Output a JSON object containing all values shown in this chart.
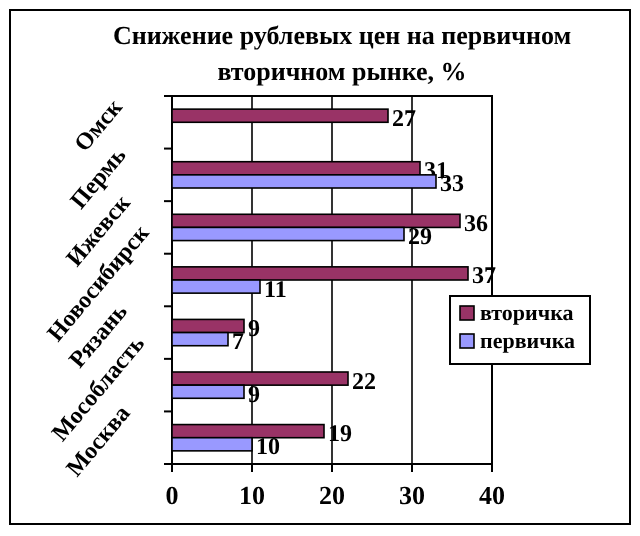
{
  "chart_data": {
    "type": "bar",
    "orientation": "horizontal",
    "title": "Снижение рублевых цен на первичном вторичном рынке, %",
    "categories": [
      "Омск",
      "Пермь",
      "Ижевск",
      "Новосибирск",
      "Рязань",
      "Мособласть",
      "Москва"
    ],
    "series": [
      {
        "name": "вторичка",
        "color": "#993366",
        "values": [
          27,
          31,
          36,
          37,
          9,
          22,
          19
        ]
      },
      {
        "name": "первичка",
        "color": "#9999ff",
        "values": [
          null,
          33,
          29,
          11,
          7,
          9,
          10
        ]
      }
    ],
    "xlim": [
      0,
      40
    ],
    "xticks": [
      0,
      10,
      20,
      30,
      40
    ],
    "grid": "x",
    "legend": "right",
    "data_labels": true
  }
}
